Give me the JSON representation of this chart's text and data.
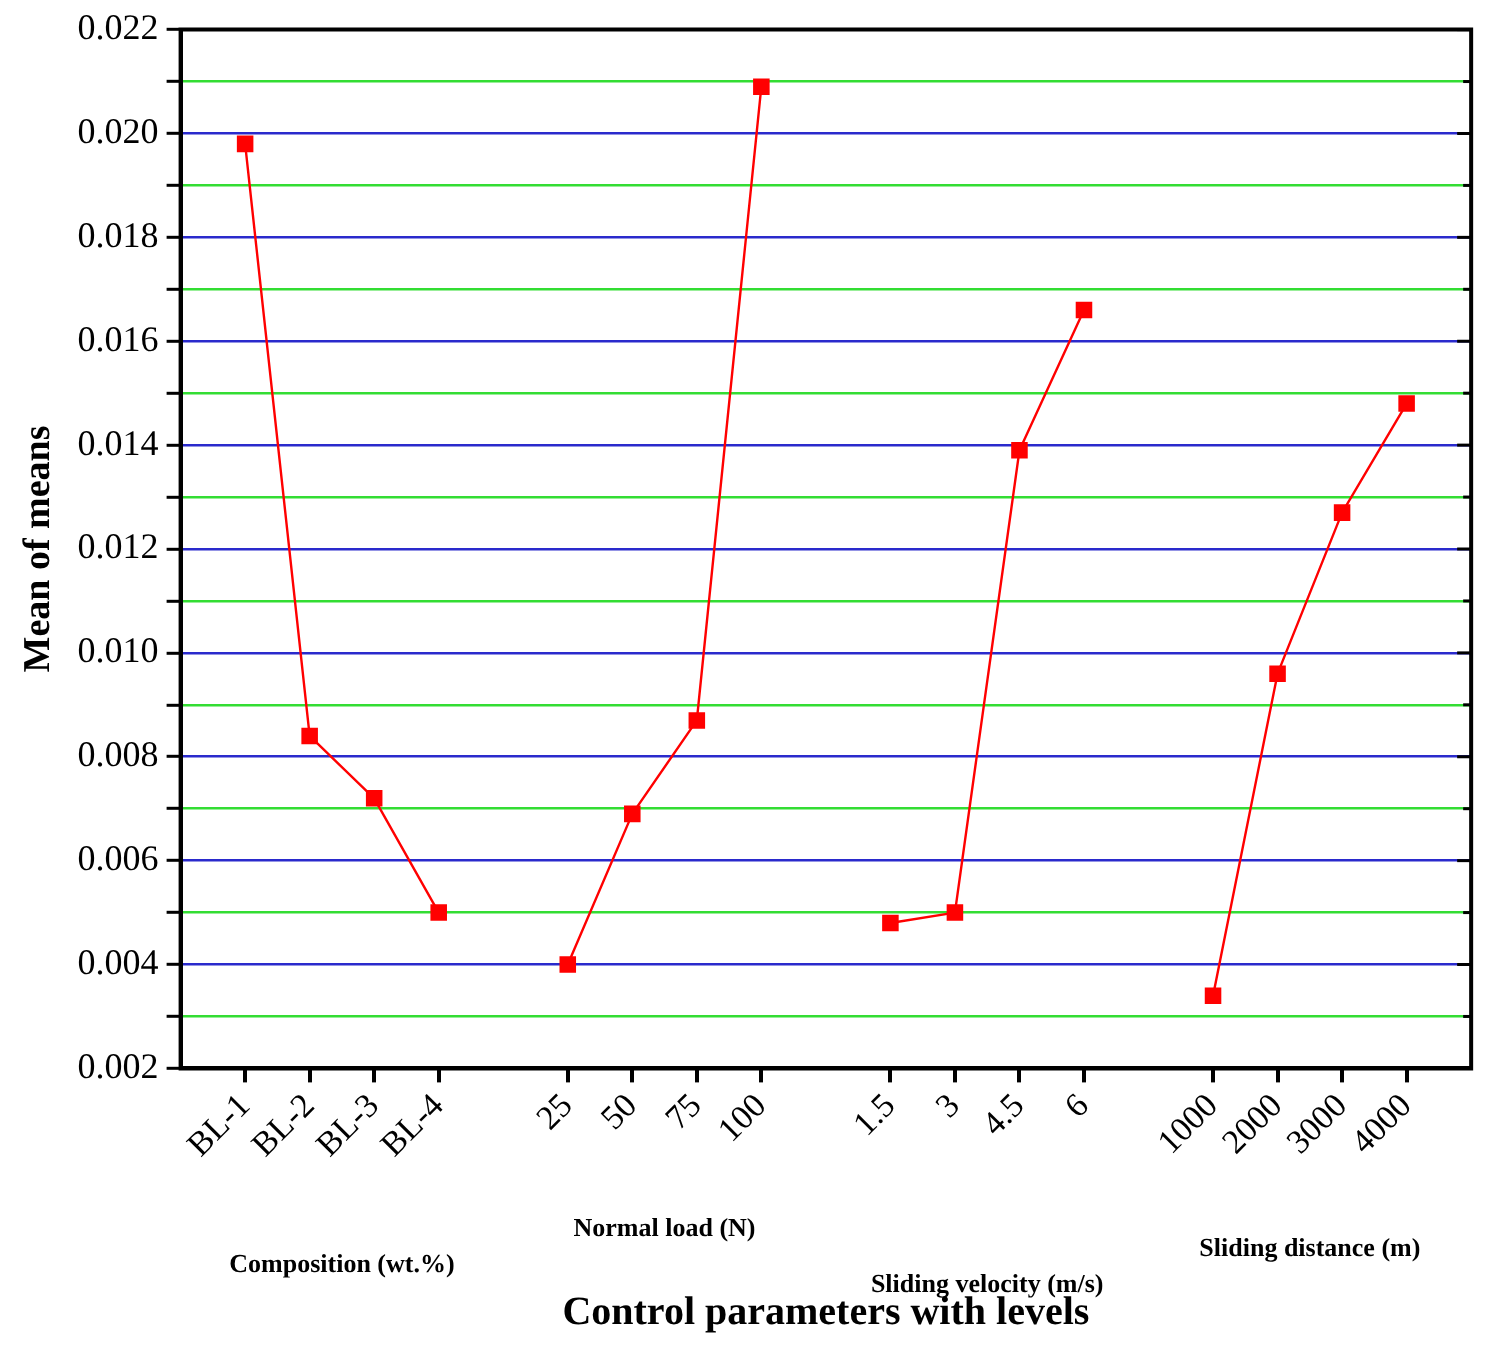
{
  "chart_data": {
    "type": "line",
    "xlabel": "Control parameters with levels",
    "ylabel": "Mean of means",
    "categories": [
      null,
      "BL-1",
      "BL-2",
      "BL-3",
      "BL-4",
      null,
      "25",
      "50",
      "75",
      "100",
      null,
      "1.5",
      "3",
      "4.5",
      "6",
      null,
      "1000",
      "2000",
      "3000",
      "4000",
      null
    ],
    "series": [
      {
        "color": "#ff0000",
        "values": [
          null,
          0.0198,
          0.0084,
          0.0072,
          0.005,
          null,
          null,
          null,
          null,
          null,
          null,
          null,
          null,
          null,
          null,
          null,
          null,
          null,
          null,
          null,
          null
        ]
      },
      {
        "color": "#ff0000",
        "values": [
          null,
          null,
          null,
          null,
          null,
          null,
          0.004,
          0.0069,
          0.0087,
          0.0209,
          null,
          null,
          null,
          null,
          null,
          null,
          null,
          null,
          null,
          null,
          null
        ]
      },
      {
        "color": "#ff0000",
        "values": [
          null,
          null,
          null,
          null,
          null,
          null,
          null,
          null,
          null,
          null,
          null,
          0.0048,
          0.005,
          0.0139,
          0.0166,
          null,
          null,
          null,
          null,
          null,
          null
        ]
      },
      {
        "color": "#ff0000",
        "values": [
          null,
          null,
          null,
          null,
          null,
          null,
          null,
          null,
          null,
          null,
          null,
          null,
          null,
          null,
          null,
          null,
          0.0034,
          0.0096,
          0.0127,
          0.0148,
          null
        ]
      }
    ],
    "ylim": [
      0.002,
      0.022
    ],
    "yticks": [
      0.002,
      {
        "value": 0.003,
        "label": null
      },
      0.004,
      {
        "value": 0.005,
        "label": null
      },
      0.006,
      {
        "value": 0.007,
        "label": null
      },
      0.008,
      {
        "value": 0.009,
        "label": null
      },
      {
        "value": 0.01,
        "label": "0.010"
      },
      {
        "value": 0.011,
        "label": null
      },
      0.012,
      {
        "value": 0.013,
        "label": null
      },
      0.014,
      {
        "value": 0.015,
        "label": null
      },
      0.016,
      {
        "value": 0.017,
        "label": null
      },
      0.018,
      {
        "value": 0.019,
        "label": null
      },
      {
        "value": 0.02,
        "label": "0.020"
      },
      {
        "value": 0.021,
        "label": null
      },
      0.022
    ],
    "grid": "y",
    "marker": "square",
    "line_style": "solid",
    "legend": false,
    "annotations": [
      "Composition (wt.%)",
      "Normal load (N)",
      "Sliding velocity (m/s)",
      "Sliding distance (m)"
    ]
  }
}
